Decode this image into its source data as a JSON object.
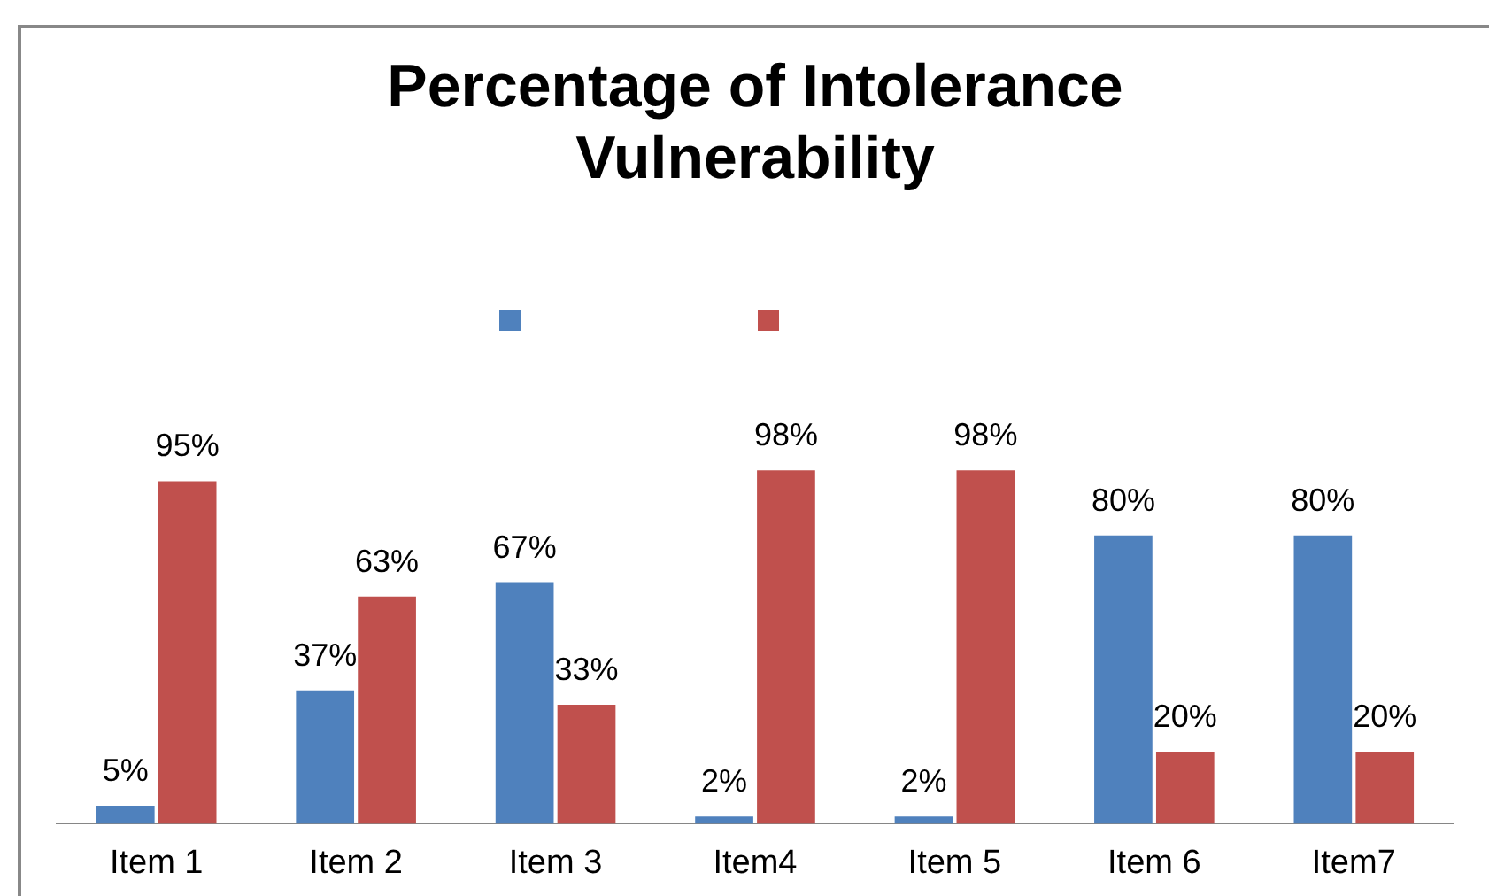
{
  "chart_data": {
    "type": "bar",
    "title": [
      "Percentage of Intolerance",
      "Vulnerability"
    ],
    "categories": [
      "Item 1",
      "Item 2",
      "Item 3",
      "Item4",
      "Item 5",
      "Item 6",
      "Item7"
    ],
    "series": [
      {
        "color": "#4f81bd",
        "values": [
          5,
          37,
          67,
          2,
          2,
          80,
          80
        ],
        "value_labels": [
          "5%",
          "37%",
          "67%",
          "2%",
          "2%",
          "80%",
          "80%"
        ]
      },
      {
        "color": "#c0504d",
        "values": [
          95,
          63,
          33,
          98,
          98,
          20,
          20
        ],
        "value_labels": [
          "95%",
          "63%",
          "33%",
          "98%",
          "98%",
          "20%",
          "20%"
        ]
      }
    ],
    "grid": false,
    "tick_labels": "x"
  }
}
